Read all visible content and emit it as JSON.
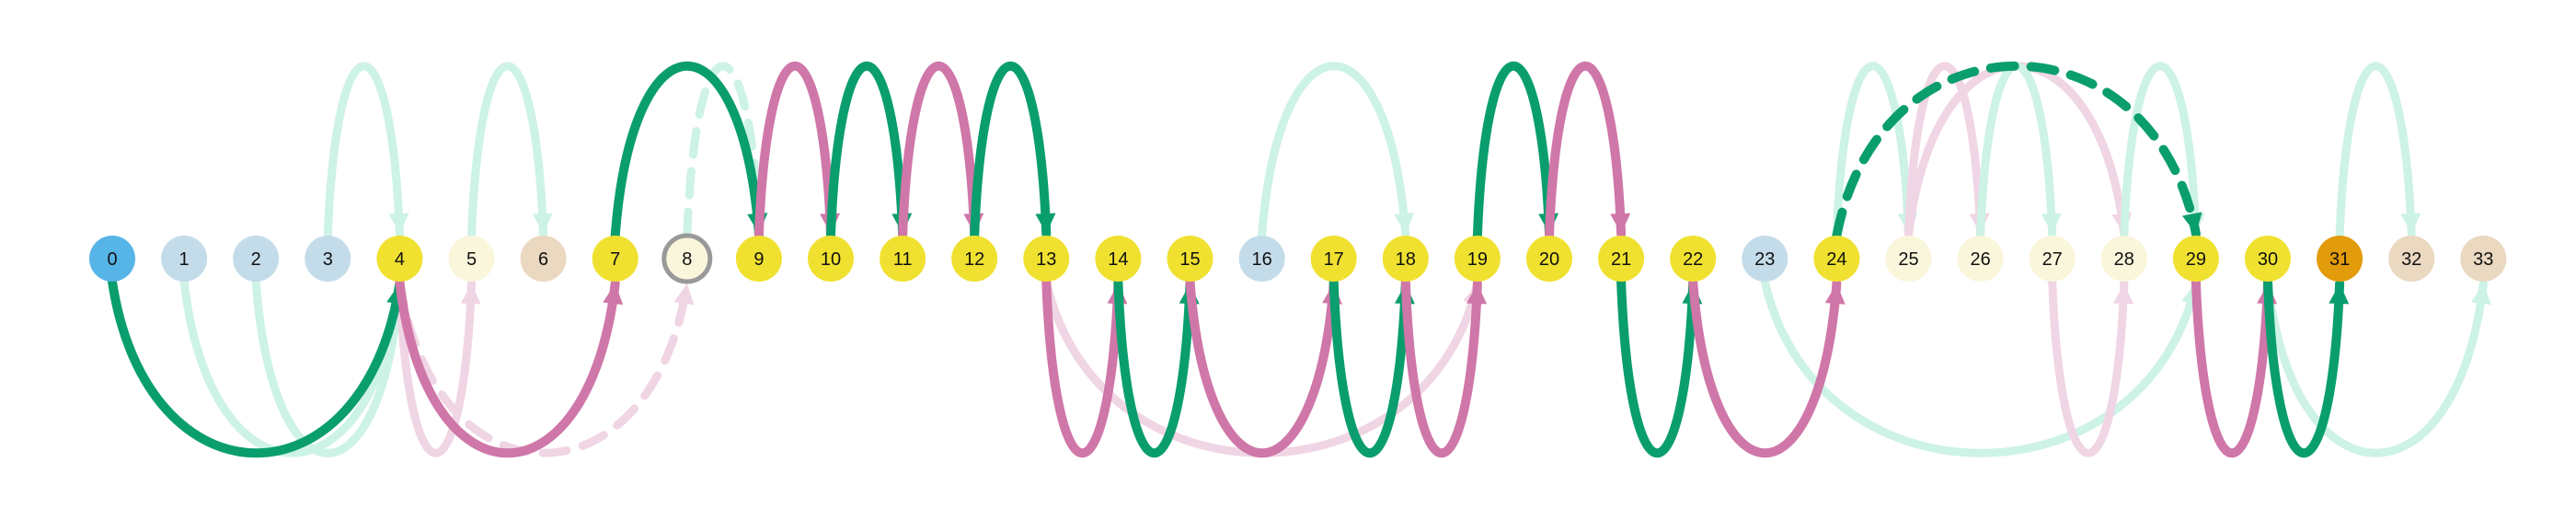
{
  "colors": {
    "green": "#0a9e6e",
    "pink": "#cf77a8",
    "green_faint": "#cdf2e6",
    "pink_faint": "#f0d5e4",
    "node_blue": "#57b4e6",
    "node_lightblue": "#c4dcea",
    "node_yellow": "#f0e130",
    "node_cream": "#faf6dc",
    "node_tan": "#ead8c0",
    "node_orange": "#e29b0a",
    "node_ring": "#999999"
  },
  "nodes": [
    {
      "label": "0",
      "fill": "node_blue"
    },
    {
      "label": "1",
      "fill": "node_lightblue"
    },
    {
      "label": "2",
      "fill": "node_lightblue"
    },
    {
      "label": "3",
      "fill": "node_lightblue"
    },
    {
      "label": "4",
      "fill": "node_yellow"
    },
    {
      "label": "5",
      "fill": "node_cream"
    },
    {
      "label": "6",
      "fill": "node_tan"
    },
    {
      "label": "7",
      "fill": "node_yellow"
    },
    {
      "label": "8",
      "fill": "node_cream",
      "ring": true
    },
    {
      "label": "9",
      "fill": "node_yellow"
    },
    {
      "label": "10",
      "fill": "node_yellow"
    },
    {
      "label": "11",
      "fill": "node_yellow"
    },
    {
      "label": "12",
      "fill": "node_yellow"
    },
    {
      "label": "13",
      "fill": "node_yellow"
    },
    {
      "label": "14",
      "fill": "node_yellow"
    },
    {
      "label": "15",
      "fill": "node_yellow"
    },
    {
      "label": "16",
      "fill": "node_lightblue"
    },
    {
      "label": "17",
      "fill": "node_yellow"
    },
    {
      "label": "18",
      "fill": "node_yellow"
    },
    {
      "label": "19",
      "fill": "node_yellow"
    },
    {
      "label": "20",
      "fill": "node_yellow"
    },
    {
      "label": "21",
      "fill": "node_yellow"
    },
    {
      "label": "22",
      "fill": "node_yellow"
    },
    {
      "label": "23",
      "fill": "node_lightblue"
    },
    {
      "label": "24",
      "fill": "node_yellow"
    },
    {
      "label": "25",
      "fill": "node_cream"
    },
    {
      "label": "26",
      "fill": "node_cream"
    },
    {
      "label": "27",
      "fill": "node_cream"
    },
    {
      "label": "28",
      "fill": "node_cream"
    },
    {
      "label": "29",
      "fill": "node_yellow"
    },
    {
      "label": "30",
      "fill": "node_yellow"
    },
    {
      "label": "31",
      "fill": "node_orange"
    },
    {
      "label": "32",
      "fill": "node_tan"
    },
    {
      "label": "33",
      "fill": "node_tan"
    }
  ],
  "edges": [
    {
      "from": 3,
      "to": 4,
      "side": "top",
      "color": "green_faint"
    },
    {
      "from": 5,
      "to": 6,
      "side": "top",
      "color": "green_faint"
    },
    {
      "from": 8,
      "to": 9,
      "side": "top",
      "color": "green_faint",
      "dashed": true
    },
    {
      "from": 16,
      "to": 18,
      "side": "top",
      "color": "green_faint"
    },
    {
      "from": 24,
      "to": 25,
      "side": "top",
      "color": "green_faint"
    },
    {
      "from": 25,
      "to": 26,
      "side": "top",
      "color": "pink_faint"
    },
    {
      "from": 25,
      "to": 28,
      "side": "top",
      "color": "pink_faint"
    },
    {
      "from": 26,
      "to": 27,
      "side": "top",
      "color": "green_faint"
    },
    {
      "from": 28,
      "to": 29,
      "side": "top",
      "color": "green_faint"
    },
    {
      "from": 31,
      "to": 32,
      "side": "top",
      "color": "green_faint"
    },
    {
      "from": 1,
      "to": 4,
      "side": "bottom",
      "color": "green_faint"
    },
    {
      "from": 2,
      "to": 4,
      "side": "bottom",
      "color": "green_faint"
    },
    {
      "from": 4,
      "to": 5,
      "side": "bottom",
      "color": "pink_faint"
    },
    {
      "from": 4,
      "to": 8,
      "side": "bottom",
      "color": "pink_faint",
      "dashed": true
    },
    {
      "from": 13,
      "to": 19,
      "side": "bottom",
      "color": "pink_faint"
    },
    {
      "from": 23,
      "to": 29,
      "side": "bottom",
      "color": "green_faint"
    },
    {
      "from": 27,
      "to": 28,
      "side": "bottom",
      "color": "pink_faint"
    },
    {
      "from": 30,
      "to": 33,
      "side": "bottom",
      "color": "green_faint"
    },
    {
      "from": 7,
      "to": 9,
      "side": "top",
      "color": "green"
    },
    {
      "from": 9,
      "to": 10,
      "side": "top",
      "color": "pink"
    },
    {
      "from": 10,
      "to": 11,
      "side": "top",
      "color": "green"
    },
    {
      "from": 11,
      "to": 12,
      "side": "top",
      "color": "pink"
    },
    {
      "from": 12,
      "to": 13,
      "side": "top",
      "color": "green"
    },
    {
      "from": 19,
      "to": 20,
      "side": "top",
      "color": "green"
    },
    {
      "from": 20,
      "to": 21,
      "side": "top",
      "color": "pink"
    },
    {
      "from": 24,
      "to": 29,
      "side": "top",
      "color": "green",
      "dashed": true
    },
    {
      "from": 0,
      "to": 4,
      "side": "bottom",
      "color": "green"
    },
    {
      "from": 4,
      "to": 7,
      "side": "bottom",
      "color": "pink"
    },
    {
      "from": 13,
      "to": 14,
      "side": "bottom",
      "color": "pink"
    },
    {
      "from": 14,
      "to": 15,
      "side": "bottom",
      "color": "green"
    },
    {
      "from": 15,
      "to": 17,
      "side": "bottom",
      "color": "pink"
    },
    {
      "from": 17,
      "to": 18,
      "side": "bottom",
      "color": "green"
    },
    {
      "from": 18,
      "to": 19,
      "side": "bottom",
      "color": "pink"
    },
    {
      "from": 21,
      "to": 22,
      "side": "bottom",
      "color": "green"
    },
    {
      "from": 22,
      "to": 24,
      "side": "bottom",
      "color": "pink"
    },
    {
      "from": 29,
      "to": 30,
      "side": "bottom",
      "color": "pink"
    },
    {
      "from": 30,
      "to": 31,
      "side": "bottom",
      "color": "green"
    }
  ]
}
